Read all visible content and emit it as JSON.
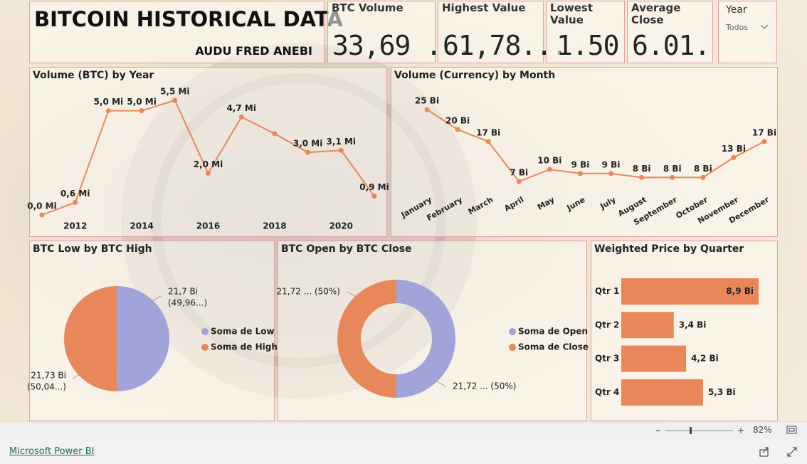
{
  "header": {
    "title": "BITCOIN HISTORICAL DATA",
    "author": "AUDU FRED ANEBI"
  },
  "cards": [
    {
      "label": "BTC Volume",
      "value": "33,69 ..."
    },
    {
      "label": "Highest Value",
      "value": "61,78..."
    },
    {
      "label": "Lowest Value",
      "value": "1.50"
    },
    {
      "label": "Average Close",
      "value": "6.01..."
    }
  ],
  "slicer": {
    "label": "Year",
    "value": "Todos"
  },
  "chart_data": [
    {
      "type": "line",
      "title": "Volume (BTC) by Year",
      "x": [
        2011,
        2012,
        2013,
        2014,
        2015,
        2016,
        2017,
        2018,
        2019,
        2020,
        2021
      ],
      "values": [
        0.0,
        0.6,
        5.0,
        5.0,
        5.5,
        2.0,
        4.7,
        3.9,
        3.0,
        3.1,
        0.9
      ],
      "value_labels": [
        "0,0 Mi",
        "0,6 Mi",
        "5,0 Mi",
        "5,0 Mi",
        "5,5 Mi",
        "2,0 Mi",
        "4,7 Mi",
        null,
        "3,0 Mi",
        "3,1 Mi",
        "0,9 Mi"
      ],
      "xlim": [
        2010.7,
        2021.3
      ],
      "xticks": [
        2012,
        2014,
        2016,
        2018,
        2020
      ],
      "color": "#e8875a"
    },
    {
      "type": "line",
      "title": "Volume (Currency) by Month",
      "categories": [
        "January",
        "February",
        "March",
        "April",
        "May",
        "June",
        "July",
        "August",
        "September",
        "October",
        "November",
        "December"
      ],
      "values": [
        25,
        20,
        17,
        7,
        10,
        9,
        9,
        8,
        8,
        8,
        13,
        17
      ],
      "value_labels": [
        "25 Bi",
        "20 Bi",
        "17 Bi",
        "7 Bi",
        "10 Bi",
        "9 Bi",
        "9 Bi",
        "8 Bi",
        "8 Bi",
        "8 Bi",
        "13 Bi",
        "17 Bi"
      ],
      "color": "#e8875a"
    },
    {
      "type": "pie",
      "title": "BTC Low by BTC High",
      "categories": [
        "Soma de Low",
        "Soma de High"
      ],
      "values": [
        21.7,
        21.73
      ],
      "value_labels": [
        "21,7 Bi",
        "21,73 Bi"
      ],
      "percent_labels": [
        "(49,96...)",
        "(50,04...)"
      ],
      "colors": [
        "#a0a4d8",
        "#e8875a"
      ]
    },
    {
      "type": "donut",
      "title": "BTC Open by BTC Close",
      "categories": [
        "Soma de Open",
        "Soma de Close"
      ],
      "values": [
        21.72,
        21.72
      ],
      "value_labels": [
        "21,72 ... (50%)",
        "21,72 ... (50%)"
      ],
      "colors": [
        "#a0a4d8",
        "#e8875a"
      ]
    },
    {
      "type": "bar",
      "horizontal": true,
      "title": "Weighted Price by Quarter",
      "categories": [
        "Qtr 1",
        "Qtr 2",
        "Qtr 3",
        "Qtr 4"
      ],
      "values": [
        8.9,
        3.4,
        4.2,
        5.3
      ],
      "value_labels": [
        "8,9 Bi",
        "3,4 Bi",
        "4,2 Bi",
        "5,3 Bi"
      ],
      "color": "#e8875a"
    }
  ],
  "footer": {
    "zoom": "82%",
    "link": "Microsoft Power BI"
  }
}
